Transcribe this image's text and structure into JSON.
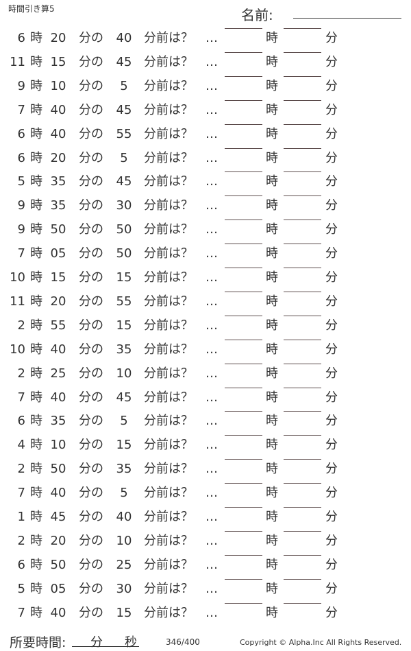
{
  "header": {
    "title": "時間引き算5",
    "name_label": "名前:"
  },
  "labels": {
    "hour": "時",
    "minute_of": "分の",
    "minutes_before": "分前は？",
    "dots": "…",
    "answer_hour": "時",
    "answer_minute": "分"
  },
  "problems": [
    {
      "h": "6",
      "m": "20",
      "n": "40"
    },
    {
      "h": "11",
      "m": "15",
      "n": "45"
    },
    {
      "h": "9",
      "m": "10",
      "n": "5"
    },
    {
      "h": "7",
      "m": "40",
      "n": "45"
    },
    {
      "h": "6",
      "m": "40",
      "n": "55"
    },
    {
      "h": "6",
      "m": "20",
      "n": "5"
    },
    {
      "h": "5",
      "m": "35",
      "n": "45"
    },
    {
      "h": "9",
      "m": "35",
      "n": "30"
    },
    {
      "h": "9",
      "m": "50",
      "n": "50"
    },
    {
      "h": "7",
      "m": "05",
      "n": "50"
    },
    {
      "h": "10",
      "m": "15",
      "n": "15"
    },
    {
      "h": "11",
      "m": "20",
      "n": "55"
    },
    {
      "h": "2",
      "m": "55",
      "n": "15"
    },
    {
      "h": "10",
      "m": "40",
      "n": "35"
    },
    {
      "h": "2",
      "m": "25",
      "n": "10"
    },
    {
      "h": "7",
      "m": "40",
      "n": "45"
    },
    {
      "h": "6",
      "m": "35",
      "n": "5"
    },
    {
      "h": "4",
      "m": "10",
      "n": "15"
    },
    {
      "h": "2",
      "m": "50",
      "n": "35"
    },
    {
      "h": "7",
      "m": "40",
      "n": "5"
    },
    {
      "h": "1",
      "m": "45",
      "n": "40"
    },
    {
      "h": "2",
      "m": "20",
      "n": "10"
    },
    {
      "h": "6",
      "m": "50",
      "n": "25"
    },
    {
      "h": "5",
      "m": "05",
      "n": "30"
    },
    {
      "h": "7",
      "m": "40",
      "n": "15"
    }
  ],
  "footer": {
    "time_label": "所要時間:",
    "minute": "分",
    "second": "秒",
    "page": "346/400",
    "copyright": "Copyright ©  Alpha.Inc All Rights Reserved."
  }
}
